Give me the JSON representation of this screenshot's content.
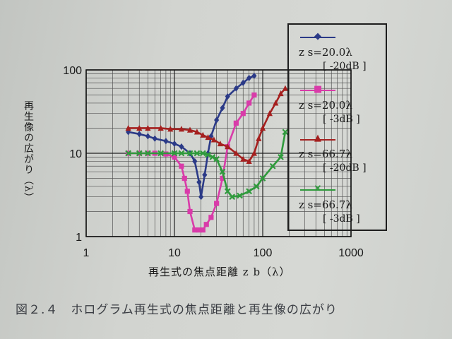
{
  "figure": {
    "caption": "図２.４　ホログラム再生式の焦点距離と再生像の広がり"
  },
  "chart_data": {
    "type": "line",
    "xscale": "log",
    "yscale": "log",
    "xlim": [
      1,
      1000
    ],
    "ylim": [
      1,
      100
    ],
    "xticks": [
      "1",
      "10",
      "100",
      "1000"
    ],
    "yticks": [
      "1",
      "10",
      "100"
    ],
    "xlabel": "再生式の焦点距離 z b（λ）",
    "ylabel": "再生像の広がり（λ）",
    "grid": true,
    "legend_position": "right",
    "series": [
      {
        "name": "z s=20.0λ",
        "unit": "[ -20dB ]",
        "color": "#2b3a87",
        "marker": "diamond",
        "x": [
          3,
          4,
          5,
          6,
          8,
          10,
          12,
          15,
          17,
          19,
          20,
          22,
          24,
          26,
          30,
          35,
          40,
          50,
          60,
          70,
          80
        ],
        "y": [
          18,
          17,
          16,
          15,
          14,
          13,
          12,
          10,
          8,
          4.5,
          3,
          5.5,
          10,
          16,
          25,
          35,
          48,
          60,
          70,
          80,
          85
        ]
      },
      {
        "name": "z s=20.0λ",
        "unit": "[ -3dB ]",
        "color": "#d93ba9",
        "marker": "square",
        "x": [
          3,
          4,
          5,
          6,
          8,
          10,
          12,
          13,
          14,
          15,
          17,
          19,
          21,
          23,
          26,
          30,
          35,
          40,
          50,
          60,
          70,
          80
        ],
        "y": [
          10,
          10,
          10,
          10,
          9.8,
          9,
          7,
          5,
          3.5,
          2,
          1.2,
          1.2,
          1.2,
          1.4,
          1.7,
          2.5,
          5,
          12,
          23,
          30,
          40,
          50
        ]
      },
      {
        "name": "z s=66.7λ",
        "unit": "[ -20dB ]",
        "color": "#a5201f",
        "marker": "triangle",
        "x": [
          3,
          4,
          5,
          7,
          9,
          12,
          15,
          18,
          21,
          24,
          28,
          33,
          40,
          50,
          60,
          70,
          80,
          90,
          100,
          120,
          140,
          160,
          180
        ],
        "y": [
          20,
          20,
          20,
          20,
          19.5,
          19.5,
          19,
          18,
          16.5,
          15.5,
          14.5,
          13,
          12,
          10,
          8.5,
          8,
          10,
          15,
          20,
          30,
          40,
          52,
          60
        ]
      },
      {
        "name": "z s=66.7λ",
        "unit": "[ -3dB ]",
        "color": "#2f9a3c",
        "marker": "x",
        "x": [
          3,
          4,
          5,
          7,
          10,
          12,
          15,
          18,
          21,
          24,
          27,
          30,
          35,
          40,
          45,
          55,
          70,
          85,
          100,
          130,
          160,
          180
        ],
        "y": [
          10,
          10,
          10,
          10,
          10,
          10,
          10,
          10,
          10,
          9.6,
          9,
          8.5,
          6,
          3.5,
          3,
          3.1,
          3.5,
          4,
          5,
          7,
          9,
          18
        ]
      }
    ]
  }
}
